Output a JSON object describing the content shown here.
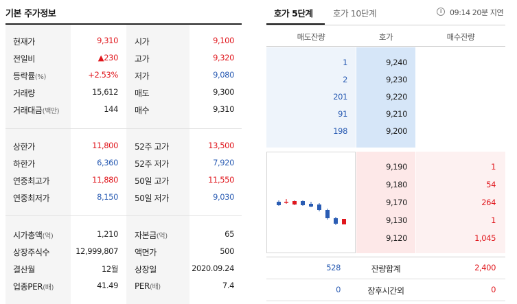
{
  "left": {
    "title": "기본 주가정보",
    "sec1": [
      {
        "l1": "현재가",
        "v1": "9,310",
        "c1": "red",
        "l2": "시가",
        "v2": "9,100",
        "c2": "red"
      },
      {
        "l1": "전일비",
        "v1": "▲230",
        "c1": "red",
        "l2": "고가",
        "v2": "9,320",
        "c2": "red"
      },
      {
        "l1": "등락률",
        "l1s": "(%)",
        "v1": "+2.53%",
        "c1": "red",
        "l2": "저가",
        "v2": "9,080",
        "c2": "blue"
      },
      {
        "l1": "거래량",
        "v1": "15,612",
        "c1": "black",
        "l2": "매도",
        "v2": "9,300",
        "c2": "black"
      },
      {
        "l1": "거래대금",
        "l1s": "(백만)",
        "v1": "144",
        "c1": "black",
        "l2": "매수",
        "v2": "9,310",
        "c2": "black"
      }
    ],
    "sec2": [
      {
        "l1": "상한가",
        "v1": "11,800",
        "c1": "red",
        "l2": "52주 고가",
        "v2": "13,500",
        "c2": "red"
      },
      {
        "l1": "하한가",
        "v1": "6,360",
        "c1": "blue",
        "l2": "52주 저가",
        "v2": "7,920",
        "c2": "blue"
      },
      {
        "l1": "연중최고가",
        "v1": "11,880",
        "c1": "red",
        "l2": "50일 고가",
        "v2": "11,550",
        "c2": "red"
      },
      {
        "l1": "연중최저가",
        "v1": "8,150",
        "c1": "blue",
        "l2": "50일 저가",
        "v2": "9,030",
        "c2": "blue"
      }
    ],
    "sec3": [
      {
        "l1": "시가총액",
        "l1s": "(억)",
        "v1": "1,210",
        "c1": "black",
        "l2": "자본금",
        "l2s": "(억)",
        "v2": "65",
        "c2": "black"
      },
      {
        "l1": "상장주식수",
        "v1": "12,999,807",
        "c1": "black",
        "l2": "액면가",
        "v2": "500",
        "c2": "black"
      },
      {
        "l1": "결산월",
        "v1": "12월",
        "c1": "black",
        "l2": "상장일",
        "v2": "2020.09.24",
        "c2": "black"
      },
      {
        "l1": "업종PER",
        "l1s": "(배)",
        "v1": "41.49",
        "c1": "black",
        "l2": "PER",
        "l2s": "(배)",
        "v2": "7.4",
        "c2": "black"
      }
    ]
  },
  "right": {
    "tab_active": "호가 5단계",
    "tab_inactive": "호가 10단계",
    "info_icon_glyph": "i",
    "delay_text": "09:14 20분 지연",
    "headers": {
      "ask": "매도잔량",
      "price": "호가",
      "bid": "매수잔량"
    },
    "asks": [
      {
        "qty": "1",
        "price": "9,240"
      },
      {
        "qty": "2",
        "price": "9,230"
      },
      {
        "qty": "201",
        "price": "9,220"
      },
      {
        "qty": "91",
        "price": "9,210"
      },
      {
        "qty": "198",
        "price": "9,200"
      }
    ],
    "bids": [
      {
        "price": "9,190",
        "qty": "1"
      },
      {
        "price": "9,180",
        "qty": "54"
      },
      {
        "price": "9,170",
        "qty": "264"
      },
      {
        "price": "9,130",
        "qty": "1"
      },
      {
        "price": "9,120",
        "qty": "1,045"
      }
    ],
    "total": {
      "ask": "528",
      "label": "잔량합계",
      "bid": "2,400"
    },
    "after": {
      "ask": "0",
      "label": "장후시간외",
      "bid": "0"
    }
  },
  "colors": {
    "up": "#e0161c",
    "down": "#2a5cb3"
  }
}
